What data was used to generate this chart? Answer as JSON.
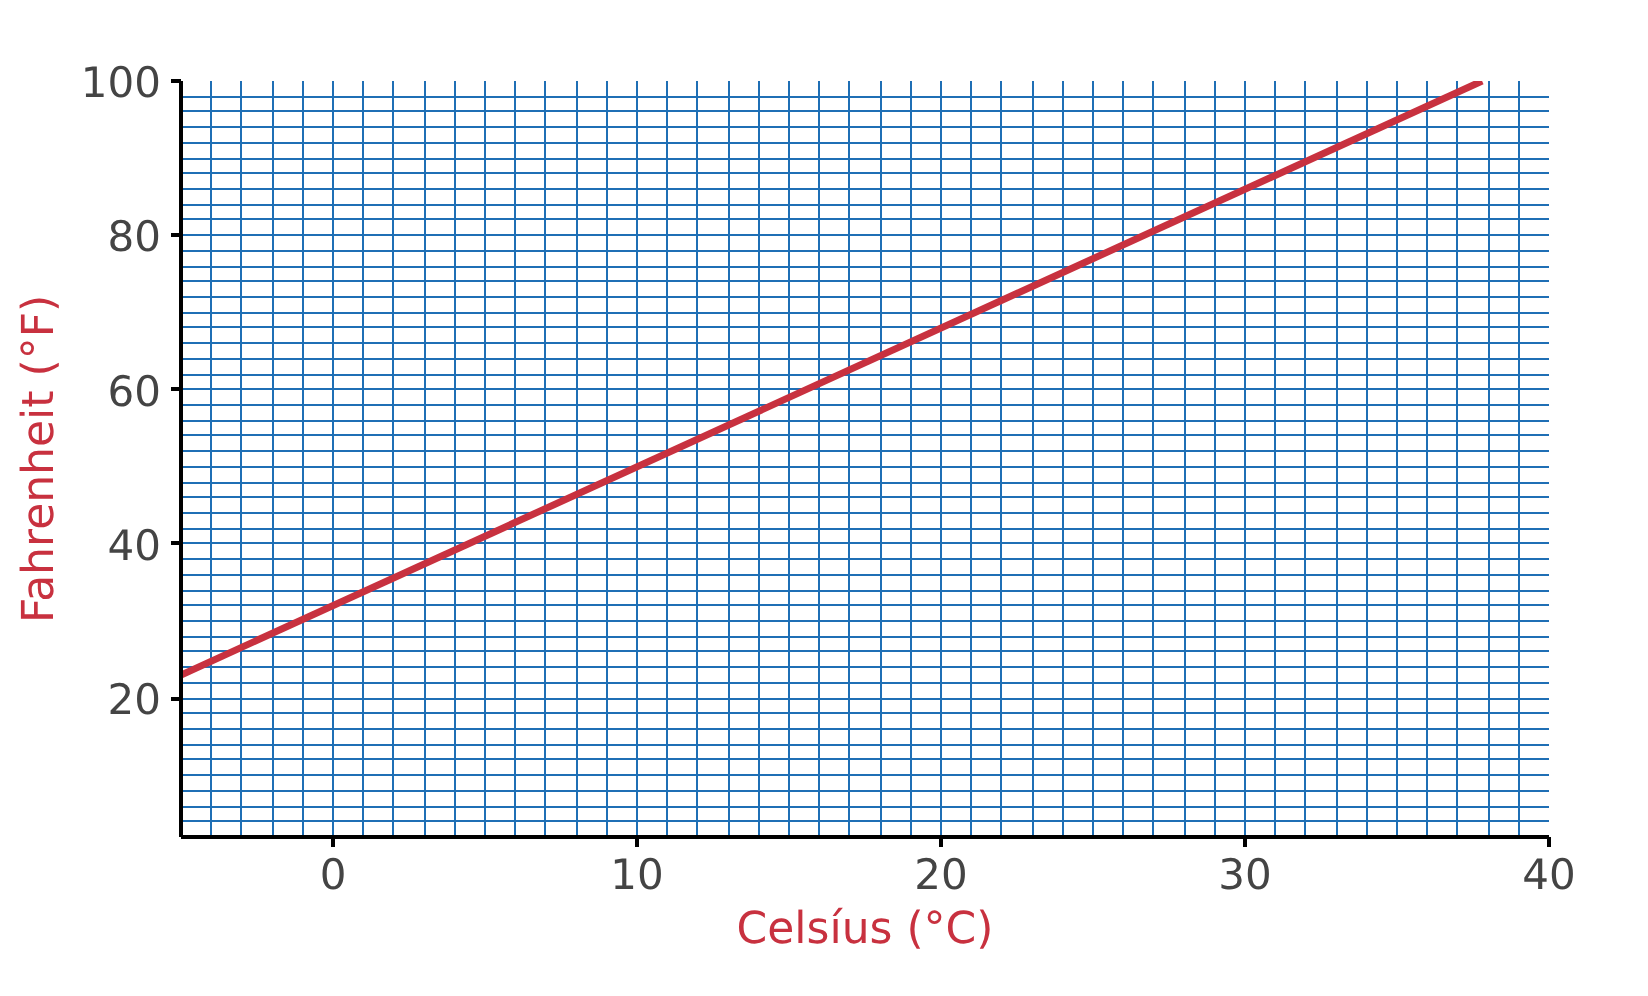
{
  "chart_data": {
    "type": "line",
    "xlabel": "Celsíus (°C)",
    "ylabel": "Fahrenheit (°F)",
    "x": [
      -5,
      37.8
    ],
    "series": [
      {
        "color": "#c8313f",
        "values": [
          23,
          100
        ]
      }
    ],
    "xlim": [
      -5,
      40
    ],
    "ylim": [
      2,
      100
    ],
    "xticks": [
      0,
      10,
      20,
      30,
      40
    ],
    "yticks": [
      20,
      40,
      60,
      80,
      100
    ],
    "grid": true,
    "marker": "none",
    "line_style": "solid"
  }
}
